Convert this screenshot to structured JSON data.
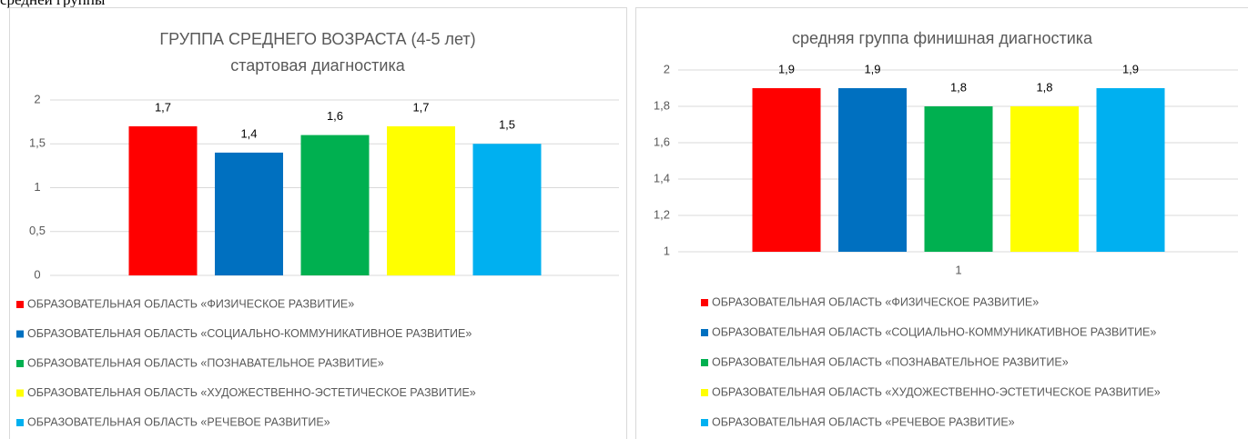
{
  "caption": "средней группы",
  "chart_data": [
    {
      "type": "bar",
      "title": "ГРУППА СРЕДНЕГО ВОЗРАСТА (4-5 лет)",
      "subtitle": "стартовая диагностика",
      "categories": [
        null
      ],
      "series": [
        {
          "name": "ОБРАЗОВАТЕЛЬНАЯ ОБЛАСТЬ «ФИЗИЧЕСКОЕ РАЗВИТИЕ»",
          "color": "#ff0000",
          "values": [
            1.7
          ],
          "value_labels": [
            "1,7"
          ]
        },
        {
          "name": "ОБРАЗОВАТЕЛЬНАЯ ОБЛАСТЬ «СОЦИАЛЬНО-КОММУНИКАТИВНОЕ РАЗВИТИЕ»",
          "color": "#0070c0",
          "values": [
            1.4
          ],
          "value_labels": [
            "1,4"
          ]
        },
        {
          "name": "ОБРАЗОВАТЕЛЬНАЯ ОБЛАСТЬ «ПОЗНАВАТЕЛЬНОЕ РАЗВИТИЕ»",
          "color": "#00b050",
          "values": [
            1.6
          ],
          "value_labels": [
            "1,6"
          ]
        },
        {
          "name": "ОБРАЗОВАТЕЛЬНАЯ ОБЛАСТЬ «ХУДОЖЕСТВЕННО-ЭСТЕТИЧЕСКОЕ РАЗВИТИЕ»",
          "color": "#ffff00",
          "values": [
            1.7
          ],
          "value_labels": [
            "1,7"
          ]
        },
        {
          "name": "ОБРАЗОВАТЕЛЬНАЯ ОБЛАСТЬ «РЕЧЕВОЕ РАЗВИТИЕ»",
          "color": "#00b0f0",
          "values": [
            1.5
          ],
          "value_labels": [
            "1,5"
          ]
        }
      ],
      "ylim": [
        0,
        2
      ],
      "yticks": [
        0,
        {
          "value": 0.5,
          "label": "0,5"
        },
        1,
        {
          "value": 1.5,
          "label": "1,5"
        },
        2
      ],
      "grid": true,
      "legend": "bottom"
    },
    {
      "type": "bar",
      "title": "средняя группа финишная диагностика",
      "categories": [
        "1"
      ],
      "series": [
        {
          "name": "ОБРАЗОВАТЕЛЬНАЯ ОБЛАСТЬ «ФИЗИЧЕСКОЕ РАЗВИТИЕ»",
          "color": "#ff0000",
          "values": [
            1.9
          ],
          "value_labels": [
            "1,9"
          ]
        },
        {
          "name": "ОБРАЗОВАТЕЛЬНАЯ ОБЛАСТЬ «СОЦИАЛЬНО-КОММУНИКАТИВНОЕ РАЗВИТИЕ»",
          "color": "#0070c0",
          "values": [
            1.9
          ],
          "value_labels": [
            "1,9"
          ]
        },
        {
          "name": "ОБРАЗОВАТЕЛЬНАЯ ОБЛАСТЬ «ПОЗНАВАТЕЛЬНОЕ РАЗВИТИЕ»",
          "color": "#00b050",
          "values": [
            1.8
          ],
          "value_labels": [
            "1,8"
          ]
        },
        {
          "name": "ОБРАЗОВАТЕЛЬНАЯ ОБЛАСТЬ «ХУДОЖЕСТВЕННО-ЭСТЕТИЧЕСКОЕ РАЗВИТИЕ»",
          "color": "#ffff00",
          "values": [
            1.8
          ],
          "value_labels": [
            "1,8"
          ]
        },
        {
          "name": "ОБРАЗОВАТЕЛЬНАЯ ОБЛАСТЬ «РЕЧЕВОЕ РАЗВИТИЕ»",
          "color": "#00b0f0",
          "values": [
            1.9
          ],
          "value_labels": [
            "1,9"
          ]
        }
      ],
      "ylim": [
        1,
        2
      ],
      "yticks": [
        1,
        {
          "value": 1.2,
          "label": "1,2"
        },
        {
          "value": 1.4,
          "label": "1,4"
        },
        {
          "value": 1.6,
          "label": "1,6"
        },
        {
          "value": 1.8,
          "label": "1,8"
        },
        2
      ],
      "grid": true,
      "legend": "bottom"
    }
  ]
}
